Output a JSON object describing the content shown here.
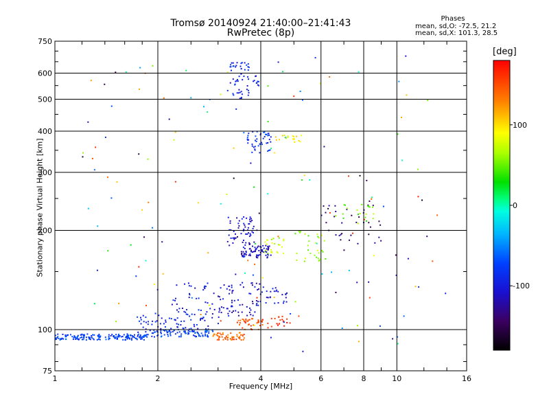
{
  "header": {
    "title_line1": "Tromsø 20140924 21:40:00–21:41:43",
    "title_line2": "RwPretec (8p)",
    "phases_title": "Phases",
    "phases_line1": "mean, sd,O: -72.5, 21.2",
    "phases_line2": "mean, sd,X: 101.3, 28.5"
  },
  "colorbar": {
    "label": "[deg]",
    "range": [
      -180,
      180
    ],
    "ticks": [
      100,
      0,
      -100
    ],
    "tick_labels": [
      "100",
      "0",
      "-100"
    ]
  },
  "chart_data": {
    "type": "scatter",
    "xlabel": "Frequency [MHz]",
    "ylabel": "Stationary phase Virtual Height [km]",
    "xscale": "log",
    "yscale": "log",
    "xlim": [
      1,
      16
    ],
    "ylim": [
      75,
      750
    ],
    "xticks": [
      1,
      2,
      4,
      6,
      8,
      10,
      16
    ],
    "xtick_labels": [
      "1",
      "2",
      "4",
      "6",
      "8",
      "10",
      "16"
    ],
    "yticks": [
      75,
      100,
      200,
      300,
      400,
      500,
      600,
      750
    ],
    "ytick_labels": [
      "75",
      "100",
      "200",
      "300",
      "400",
      "500",
      "600",
      "750"
    ],
    "grid": true,
    "color_scale": "phase [deg]",
    "clusters": [
      {
        "x": [
          1.0,
          1.85
        ],
        "y": [
          93,
          97
        ],
        "phase": -75,
        "count": 170
      },
      {
        "x": [
          1.85,
          2.9
        ],
        "y": [
          95,
          100
        ],
        "phase": -75,
        "count": 90
      },
      {
        "x": [
          1.75,
          2.8
        ],
        "y": [
          98,
          112
        ],
        "phase": -90,
        "count": 60
      },
      {
        "x": [
          2.2,
          3.3
        ],
        "y": [
          100,
          140
        ],
        "phase": -100,
        "count": 70
      },
      {
        "x": [
          2.9,
          3.6
        ],
        "y": [
          93,
          98
        ],
        "phase": 140,
        "count": 55
      },
      {
        "x": [
          3.4,
          4.2
        ],
        "y": [
          100,
          108
        ],
        "phase": 150,
        "count": 40
      },
      {
        "x": [
          4.3,
          4.9
        ],
        "y": [
          102,
          110
        ],
        "phase": 165,
        "count": 18
      },
      {
        "x": [
          3.2,
          4.0
        ],
        "y": [
          110,
          140
        ],
        "phase": -110,
        "count": 50
      },
      {
        "x": [
          3.8,
          4.8
        ],
        "y": [
          120,
          135
        ],
        "phase": -100,
        "count": 30
      },
      {
        "x": [
          3.5,
          4.3
        ],
        "y": [
          165,
          180
        ],
        "phase": -110,
        "count": 70
      },
      {
        "x": [
          3.2,
          3.9
        ],
        "y": [
          180,
          220
        ],
        "phase": -110,
        "count": 60
      },
      {
        "x": [
          4.1,
          4.7
        ],
        "y": [
          170,
          190
        ],
        "phase": 70,
        "count": 25
      },
      {
        "x": [
          5.0,
          6.2
        ],
        "y": [
          160,
          200
        ],
        "phase": 60,
        "count": 30
      },
      {
        "x": [
          6.0,
          9.0
        ],
        "y": [
          180,
          240
        ],
        "phase": -140,
        "count": 35
      },
      {
        "x": [
          6.5,
          8.6
        ],
        "y": [
          210,
          240
        ],
        "phase": 50,
        "count": 20
      },
      {
        "x": [
          3.6,
          4.3
        ],
        "y": [
          340,
          400
        ],
        "phase": -80,
        "count": 45
      },
      {
        "x": [
          4.4,
          5.3
        ],
        "y": [
          370,
          390
        ],
        "phase": 90,
        "count": 20
      },
      {
        "x": [
          3.2,
          3.7
        ],
        "y": [
          500,
          650
        ],
        "phase": -90,
        "count": 55
      },
      {
        "x": [
          3.8,
          4.0
        ],
        "y": [
          550,
          590
        ],
        "phase": -90,
        "count": 10
      },
      {
        "x": [
          1.2,
          14.0
        ],
        "y": [
          85,
          680
        ],
        "phase": null,
        "count": 160
      }
    ]
  }
}
